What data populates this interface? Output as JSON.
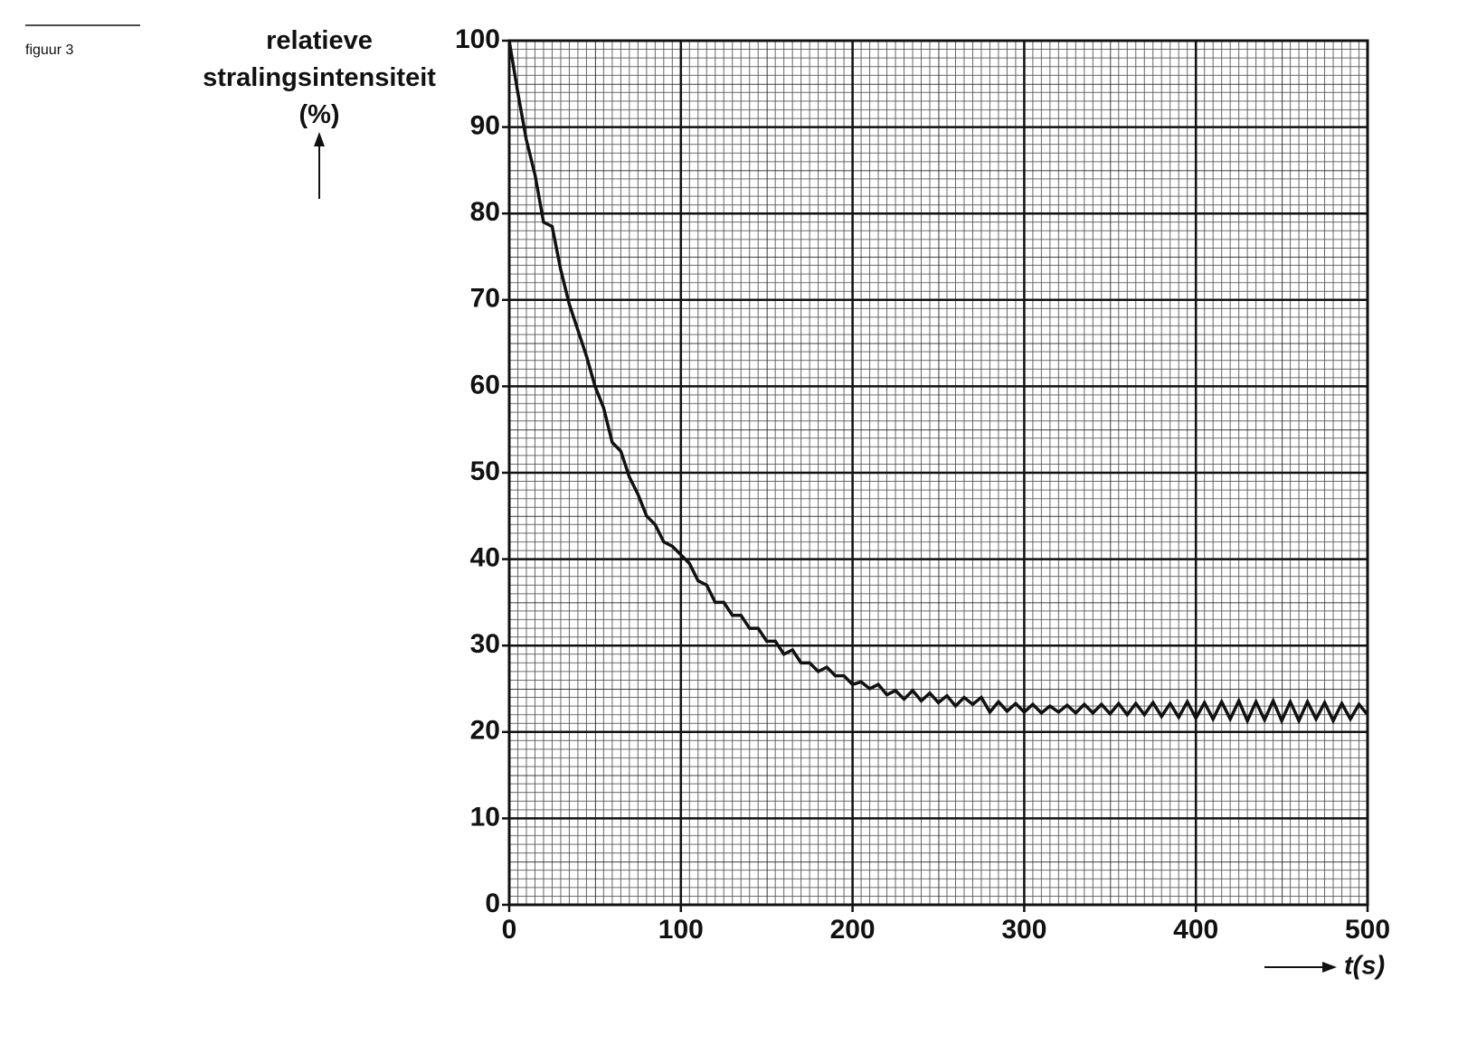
{
  "figure_label": "figuur 3",
  "chart_data": {
    "type": "line",
    "ylabel": "relatieve stralingsintensiteit (%)",
    "xlabel": "t(s)",
    "x": [
      0,
      5,
      10,
      15,
      20,
      25,
      30,
      35,
      40,
      45,
      50,
      55,
      60,
      65,
      70,
      75,
      80,
      85,
      90,
      95,
      100,
      105,
      110,
      115,
      120,
      125,
      130,
      135,
      140,
      145,
      150,
      155,
      160,
      165,
      170,
      175,
      180,
      185,
      190,
      195,
      200,
      205,
      210,
      215,
      220,
      225,
      230,
      235,
      240,
      245,
      250,
      255,
      260,
      265,
      270,
      275,
      280,
      285,
      290,
      295,
      300,
      305,
      310,
      315,
      320,
      325,
      330,
      335,
      340,
      345,
      350,
      355,
      360,
      365,
      370,
      375,
      380,
      385,
      390,
      395,
      400,
      405,
      410,
      415,
      420,
      425,
      430,
      435,
      440,
      445,
      450,
      455,
      460,
      465,
      470,
      475,
      480,
      485,
      490,
      495,
      500
    ],
    "series": [
      {
        "color": "#111111",
        "values": [
          100,
          94,
          88.5,
          84.5,
          79,
          78.5,
          73.5,
          69.5,
          66.5,
          63.5,
          60,
          57.5,
          53.5,
          52.5,
          49.5,
          47.5,
          45,
          44,
          42,
          41.5,
          40.5,
          39.5,
          37.5,
          37,
          35,
          35,
          33.5,
          33.5,
          32,
          32,
          30.5,
          30.5,
          29,
          29.5,
          28,
          28,
          27,
          27.5,
          26.5,
          26.5,
          25.5,
          25.8,
          25,
          25.5,
          24.3,
          24.8,
          23.8,
          24.8,
          23.6,
          24.5,
          23.4,
          24.2,
          23,
          24,
          23.2,
          24,
          22.3,
          23.5,
          22.4,
          23.3,
          22.3,
          23.2,
          22.2,
          23,
          22.3,
          23.1,
          22.2,
          23.2,
          22.2,
          23.2,
          22.1,
          23.3,
          22,
          23.3,
          22,
          23.4,
          21.8,
          23.3,
          21.7,
          23.5,
          21.6,
          23.4,
          21.5,
          23.5,
          21.5,
          23.6,
          21.3,
          23.5,
          21.4,
          23.6,
          21.3,
          23.5,
          21.3,
          23.5,
          21.5,
          23.4,
          21.3,
          23.3,
          21.5,
          23.2,
          22
        ]
      }
    ],
    "xlim": [
      0,
      500
    ],
    "ylim": [
      0,
      100
    ],
    "xticks": [
      0,
      100,
      200,
      300,
      400,
      500
    ],
    "yticks": [
      0,
      10,
      20,
      30,
      40,
      50,
      60,
      70,
      80,
      90,
      100
    ],
    "grid": true
  }
}
